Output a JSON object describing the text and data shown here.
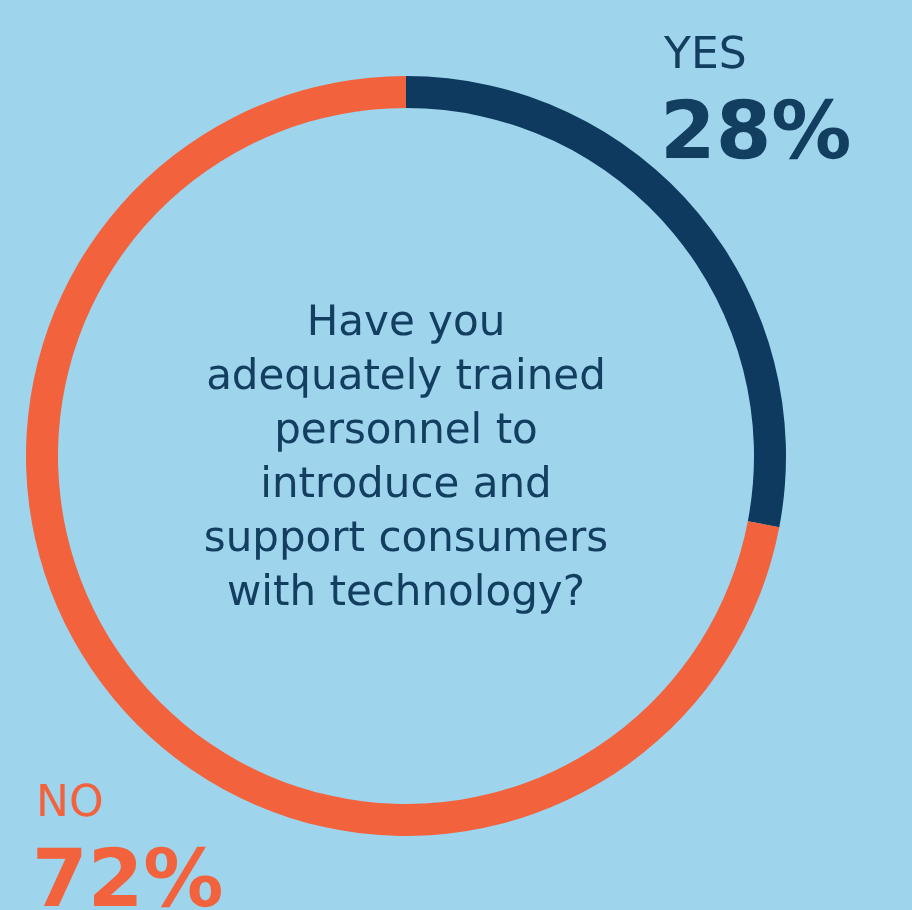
{
  "chart_data": {
    "type": "donut",
    "title": "Have you adequately trained personnel to introduce and support consumers with technology?",
    "categories": [
      "YES",
      "NO"
    ],
    "values": [
      28,
      72
    ],
    "colors": [
      "#0d3a5e",
      "#f2623c"
    ],
    "value_labels": [
      "28%",
      "72%"
    ]
  }
}
